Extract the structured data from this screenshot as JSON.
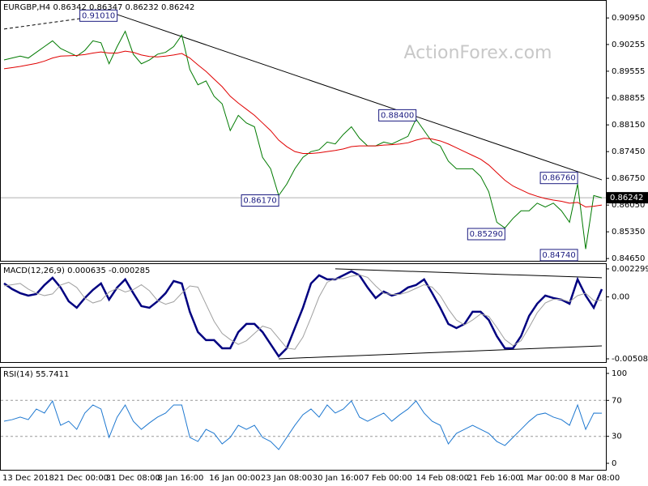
{
  "chart_data": [
    {
      "type": "line",
      "title": "EURGBP,H4  0.86342 0.86347 0.86232 0.86242",
      "watermark": "ActionForex.com",
      "ylim": [
        0.8459,
        0.9142
      ],
      "yticks": [
        {
          "value": 0.9095,
          "label": "0.90950"
        },
        0.90255,
        0.89555,
        0.88855,
        {
          "value": 0.8815,
          "label": "0.88150"
        },
        {
          "value": 0.8745,
          "label": "0.87450"
        },
        {
          "value": 0.8675,
          "label": "0.86750"
        },
        {
          "value": 0.8605,
          "label": "0.86050"
        },
        {
          "value": 0.8535,
          "label": "0.85350"
        },
        {
          "value": 0.8465,
          "label": "0.84650"
        }
      ],
      "series": [
        {
          "color": "#007a00",
          "width": 1,
          "values": [
            0.8985,
            0.899,
            0.8995,
            0.899,
            0.9005,
            0.902,
            0.9035,
            0.9015,
            0.9005,
            0.8995,
            0.901,
            0.9035,
            0.903,
            0.8975,
            0.902,
            0.906,
            0.9,
            0.8975,
            0.8985,
            0.9,
            0.9005,
            0.902,
            0.905,
            0.896,
            0.892,
            0.893,
            0.889,
            0.887,
            0.88,
            0.884,
            0.882,
            0.881,
            0.873,
            0.87,
            0.863,
            0.866,
            0.87,
            0.873,
            0.8745,
            0.875,
            0.877,
            0.8765,
            0.879,
            0.881,
            0.878,
            0.876,
            0.876,
            0.877,
            0.8765,
            0.8775,
            0.8785,
            0.883,
            0.88,
            0.877,
            0.876,
            0.872,
            0.87,
            0.87,
            0.87,
            0.868,
            0.864,
            0.856,
            0.8545,
            0.857,
            0.859,
            0.859,
            0.861,
            0.86,
            0.861,
            0.859,
            0.856,
            0.866,
            0.849,
            0.863,
            0.8624
          ]
        },
        {
          "color": "#e00000",
          "width": 1,
          "values": [
            0.8962,
            0.8965,
            0.8968,
            0.8972,
            0.8976,
            0.8982,
            0.899,
            0.8995,
            0.8996,
            0.8997,
            0.8999,
            0.9003,
            0.9006,
            0.9003,
            0.9003,
            0.9008,
            0.9005,
            0.8998,
            0.8994,
            0.8993,
            0.8995,
            0.8998,
            0.9002,
            0.899,
            0.8972,
            0.8955,
            0.8935,
            0.8915,
            0.889,
            0.8872,
            0.8856,
            0.884,
            0.882,
            0.88,
            0.8775,
            0.8758,
            0.8745,
            0.874,
            0.874,
            0.8742,
            0.8745,
            0.8748,
            0.8752,
            0.8758,
            0.876,
            0.876,
            0.876,
            0.8762,
            0.8763,
            0.8765,
            0.8768,
            0.8775,
            0.878,
            0.8778,
            0.8773,
            0.8765,
            0.8755,
            0.8745,
            0.8735,
            0.8725,
            0.871,
            0.869,
            0.867,
            0.8655,
            0.8645,
            0.8635,
            0.8628,
            0.8622,
            0.8618,
            0.8615,
            0.861,
            0.8612,
            0.86,
            0.8602,
            0.8605
          ]
        }
      ],
      "trendlines": [
        {
          "x": [
            14,
            74
          ],
          "values": [
            0.9104,
            0.8671
          ],
          "color": "#000000",
          "dashed": false
        },
        {
          "x": [
            0,
            10
          ],
          "values": [
            0.9066,
            0.9095
          ],
          "color": "#000000",
          "dashed": true
        }
      ],
      "annotations": [
        {
          "label": "0.91010",
          "value": 0.9101,
          "at": 14
        },
        {
          "label": "0.88400",
          "value": 0.884,
          "at": 51
        },
        {
          "label": "0.86170",
          "value": 0.8617,
          "at": 34
        },
        {
          "label": "0.85290",
          "value": 0.8529,
          "at": 62
        },
        {
          "label": "0.86760",
          "value": 0.8676,
          "at": 71
        },
        {
          "label": "0.84740",
          "value": 0.8474,
          "at": 71
        }
      ],
      "last": {
        "value": 0.86242,
        "label": "0.86242"
      }
    },
    {
      "type": "line",
      "title": "MACD(12,26,9) 0.000635 -0.000285",
      "ylim": [
        -0.00535,
        0.00276
      ],
      "yticks": [
        0.002299,
        {
          "value": 0,
          "label": "0.00"
        },
        -0.005085
      ],
      "series": [
        {
          "color": "#000080",
          "width": 2.5,
          "values": [
            0.001104,
            0.000638,
            0.000306,
            0.000106,
            0.000239,
            0.000971,
            0.001569,
            0.000771,
            -0.000359,
            -0.000891,
            -9.3e-05,
            0.000572,
            0.001104,
            -0.000226,
            0.000771,
            0.001436,
            0.000306,
            -0.000758,
            -0.000891,
            -0.000359,
            0.000306,
            0.001303,
            0.001104,
            -0.001224,
            -0.002886,
            -0.003551,
            -0.003551,
            -0.004216,
            -0.004216,
            -0.002886,
            -0.002221,
            -0.002221,
            -0.002886,
            -0.003884,
            -0.004881,
            -0.004216,
            -0.002554,
            -0.000891,
            0.001104,
            0.001769,
            0.001436,
            0.001436,
            0.001769,
            0.002101,
            0.001769,
            0.000771,
            -9.3e-05,
            0.000439,
            0.000106,
            0.000306,
            0.000771,
            0.000971,
            0.001436,
            0.000306,
            -0.000891,
            -0.002221,
            -0.002554,
            -0.002221,
            -0.001224,
            -0.001224,
            -0.001889,
            -0.003219,
            -0.004216,
            -0.004216,
            -0.003219,
            -0.001556,
            -0.000559,
            0.000106,
            -9.3e-05,
            -0.000226,
            -0.000559,
            0.001436,
            0.000106,
            -0.000891,
            0.000635
          ]
        },
        {
          "color": "#a0a0a0",
          "width": 1,
          "values": [
            0.0009,
            0.001,
            0.001104,
            0.000638,
            0.000306,
            0.000106,
            0.000239,
            0.000971,
            0.0012,
            0.000771,
            -0.0001,
            -0.0005,
            -0.0003,
            0.0004,
            0.0007,
            0.0004,
            0.0006,
            0.001,
            0.0005,
            -0.0003,
            -0.0006,
            -0.0004,
            0.0003,
            0.0009,
            0.0008,
            -0.0006,
            -0.002,
            -0.003,
            -0.0035,
            -0.0039,
            -0.0036,
            -0.003,
            -0.0024,
            -0.0026,
            -0.0034,
            -0.0042,
            -0.0043,
            -0.0033,
            -0.0017,
            0,
            0.0012,
            0.0015,
            0.0015,
            0.0017,
            0.0018,
            0.0016,
            0.0009,
            0.0003,
            0.0002,
            0.0002,
            0.0004,
            0.0007,
            0.001,
            0.0008,
            0.0001,
            -0.001,
            -0.0019,
            -0.0023,
            -0.0019,
            -0.0014,
            -0.0016,
            -0.0025,
            -0.0035,
            -0.004,
            -0.0036,
            -0.0025,
            -0.0013,
            -0.0005,
            -0.0002,
            -0.0002,
            -0.0004,
            0.0001,
            0.0003,
            -0.0003,
            -0.000285
          ]
        }
      ],
      "trendlines": [
        {
          "x": [
            41,
            74
          ],
          "values": [
            0.0023,
            0.00157
          ],
          "color": "#000000",
          "dashed": false
        },
        {
          "x": [
            34,
            74
          ],
          "values": [
            -0.00508,
            -0.00402
          ],
          "color": "#000000",
          "dashed": false
        }
      ]
    },
    {
      "type": "line",
      "title": "RSI(14) 55.7411",
      "ylim": [
        -7.2,
        107.2
      ],
      "yticks": [
        100,
        70,
        30,
        0
      ],
      "levels": [
        70,
        30
      ],
      "series": [
        {
          "color": "#1e78d0",
          "width": 1,
          "values": [
            46.8,
            48.6,
            51.4,
            48.6,
            60.4,
            55.9,
            69.4,
            42.3,
            46.8,
            37.8,
            55.9,
            64.9,
            60.4,
            28.8,
            51.4,
            64.9,
            46.8,
            37.8,
            45.0,
            51.4,
            55.9,
            64.9,
            64.9,
            28.8,
            24.3,
            37.8,
            33.3,
            21.6,
            28.8,
            42.3,
            37.8,
            42.3,
            28.8,
            24.3,
            15.3,
            28.8,
            42.3,
            54.1,
            60.4,
            51.4,
            64.9,
            55.9,
            60.4,
            69.4,
            51.4,
            46.8,
            51.4,
            55.9,
            46.8,
            54.1,
            60.4,
            69.4,
            55.9,
            46.8,
            42.3,
            21.6,
            33.3,
            37.8,
            42.3,
            37.8,
            33.3,
            24.3,
            19.8,
            28.8,
            37.8,
            46.8,
            54.1,
            55.9,
            51.4,
            48.6,
            42.3,
            64.9,
            37.8,
            55.9,
            55.7411
          ]
        }
      ],
      "x_labels": [
        "13 Dec 2018",
        "21 Dec 00:00",
        "31 Dec 08:00",
        "8 Jan 16:00",
        "16 Jan 00:00",
        "23 Jan 08:00",
        "30 Jan 16:00",
        "7 Feb 00:00",
        "14 Feb 08:00",
        "21 Feb 16:00",
        "1 Mar 00:00",
        "8 Mar 08:00"
      ]
    }
  ]
}
